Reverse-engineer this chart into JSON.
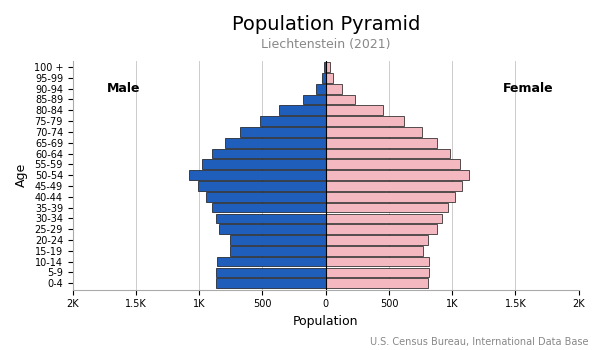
{
  "title": "Population Pyramid",
  "subtitle": "Liechtenstein (2021)",
  "xlabel": "Population",
  "ylabel": "Age",
  "footnote": "U.S. Census Bureau, International Data Base",
  "age_groups": [
    "0-4",
    "5-9",
    "10-14",
    "15-19",
    "20-24",
    "25-29",
    "30-34",
    "35-39",
    "40-44",
    "45-49",
    "50-54",
    "55-59",
    "60-64",
    "65-69",
    "70-74",
    "75-79",
    "80-84",
    "85-89",
    "90-94",
    "95-99",
    "100 +"
  ],
  "male": [
    870,
    870,
    860,
    760,
    760,
    840,
    870,
    900,
    950,
    1010,
    1080,
    980,
    900,
    800,
    680,
    520,
    370,
    180,
    80,
    30,
    10
  ],
  "female": [
    810,
    820,
    820,
    770,
    810,
    880,
    920,
    970,
    1020,
    1080,
    1130,
    1060,
    980,
    880,
    760,
    620,
    450,
    230,
    130,
    60,
    30
  ],
  "male_color": "#1f5fbb",
  "female_color": "#f4b8c1",
  "male_label": "Male",
  "female_label": "Female",
  "bar_edgecolor": "#111111",
  "bar_linewidth": 0.5,
  "xlim": 2000,
  "xtick_vals": [
    -2000,
    -1500,
    -1000,
    -500,
    0,
    500,
    1000,
    1500,
    2000
  ],
  "xtick_labels": [
    "2K",
    "1.5K",
    "1K",
    "500",
    "0",
    "500",
    "1K",
    "1.5K",
    "2K"
  ],
  "background_color": "#ffffff",
  "grid_color": "#cccccc",
  "title_fontsize": 14,
  "subtitle_fontsize": 9,
  "subtitle_color": "#888888",
  "label_fontsize": 9,
  "tick_fontsize": 7,
  "footnote_fontsize": 7,
  "footnote_color": "#888888"
}
